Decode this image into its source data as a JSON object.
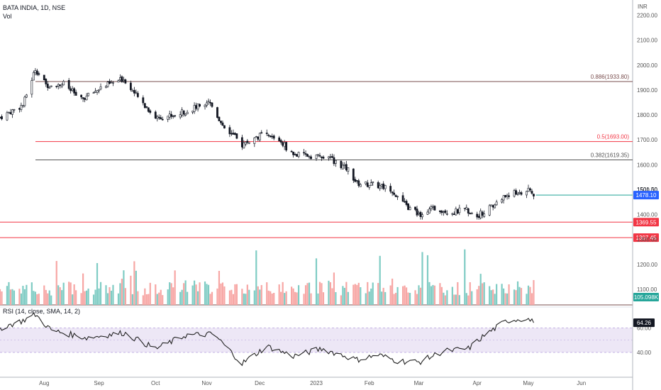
{
  "header": {
    "symbol_title": "BATA INDIA, 1D, NSE",
    "volume_label": "Vol",
    "currency": "INR"
  },
  "rsi_panel": {
    "label": "RSI (14, close, SMA, 14, 2)",
    "current_value": "64.26",
    "band_upper": 60,
    "band_lower": 40,
    "midline": 50
  },
  "price_axis": {
    "tick_labels": [
      "2200.00",
      "2100.00",
      "2000.00",
      "1900.00",
      "1800.00",
      "1700.00",
      "1600.00",
      "1500.00",
      "1400.00",
      "1300.00",
      "1200.00",
      "1100.00"
    ],
    "last_price_label": "1478.10",
    "marker_label": "1501.50",
    "volume_label": "105.098K"
  },
  "rsi_axis": {
    "tick_labels": [
      "60.00",
      "40.00"
    ]
  },
  "time_axis": {
    "labels": [
      "Aug",
      "Sep",
      "Oct",
      "Nov",
      "Dec",
      "2023",
      "Feb",
      "Mar",
      "Apr",
      "May",
      "Jun"
    ]
  },
  "levels": [
    {
      "label": "0.886(1933.80)",
      "value": 1933.8,
      "color": "#7a4f4f"
    },
    {
      "label": "0.5(1693.00)",
      "value": 1693.0,
      "color": "#f23645"
    },
    {
      "label": "0.382(1619.35)",
      "value": 1619.35,
      "color": "#555555"
    },
    {
      "label": "1369.55",
      "value": 1369.55,
      "color": "#f23645"
    },
    {
      "label": "1307.45",
      "value": 1307.45,
      "color": "#f23645"
    }
  ],
  "colors": {
    "up": "#26a69a",
    "down": "#ef5350",
    "vol_up": "#7fccc4",
    "vol_down": "#f7a6a4",
    "rsi_line": "#222222",
    "rsi_band": "#ede7f6",
    "last_price": "#2962ff",
    "last_line": "#4db6ac"
  },
  "chart_data": {
    "type": "candlestick",
    "title": "BATA INDIA, 1D, NSE",
    "x_range": [
      "2022-07-07",
      "2023-06-30"
    ],
    "ylim": [
      1330,
      2230
    ],
    "close_anchors": [
      {
        "x": "2022-07-07",
        "y": 1790
      },
      {
        "x": "2022-07-20",
        "y": 1840
      },
      {
        "x": "2022-07-27",
        "y": 1985
      },
      {
        "x": "2022-08-02",
        "y": 1920
      },
      {
        "x": "2022-08-12",
        "y": 1925
      },
      {
        "x": "2022-08-22",
        "y": 1860
      },
      {
        "x": "2022-09-02",
        "y": 1910
      },
      {
        "x": "2022-09-15",
        "y": 1945
      },
      {
        "x": "2022-09-23",
        "y": 1870
      },
      {
        "x": "2022-10-03",
        "y": 1790
      },
      {
        "x": "2022-10-14",
        "y": 1800
      },
      {
        "x": "2022-10-26",
        "y": 1830
      },
      {
        "x": "2022-11-02",
        "y": 1860
      },
      {
        "x": "2022-11-10",
        "y": 1760
      },
      {
        "x": "2022-11-21",
        "y": 1680
      },
      {
        "x": "2022-12-02",
        "y": 1720
      },
      {
        "x": "2022-12-12",
        "y": 1700
      },
      {
        "x": "2022-12-20",
        "y": 1640
      },
      {
        "x": "2023-01-02",
        "y": 1635
      },
      {
        "x": "2023-01-11",
        "y": 1620
      },
      {
        "x": "2023-01-20",
        "y": 1580
      },
      {
        "x": "2023-01-25",
        "y": 1525
      },
      {
        "x": "2023-02-03",
        "y": 1520
      },
      {
        "x": "2023-02-13",
        "y": 1505
      },
      {
        "x": "2023-02-21",
        "y": 1440
      },
      {
        "x": "2023-03-01",
        "y": 1400
      },
      {
        "x": "2023-03-10",
        "y": 1425
      },
      {
        "x": "2023-03-20",
        "y": 1410
      },
      {
        "x": "2023-03-28",
        "y": 1420
      },
      {
        "x": "2023-04-03",
        "y": 1395
      },
      {
        "x": "2023-04-11",
        "y": 1430
      },
      {
        "x": "2023-04-20",
        "y": 1480
      },
      {
        "x": "2023-05-02",
        "y": 1495
      },
      {
        "x": "2023-05-05",
        "y": 1478.1
      }
    ],
    "rsi_anchors": [
      {
        "x": "2022-07-07",
        "y": 60
      },
      {
        "x": "2022-07-20",
        "y": 66
      },
      {
        "x": "2022-07-27",
        "y": 71
      },
      {
        "x": "2022-08-05",
        "y": 58
      },
      {
        "x": "2022-08-25",
        "y": 52
      },
      {
        "x": "2022-09-15",
        "y": 56
      },
      {
        "x": "2022-10-03",
        "y": 43
      },
      {
        "x": "2022-10-20",
        "y": 54
      },
      {
        "x": "2022-11-05",
        "y": 55
      },
      {
        "x": "2022-11-21",
        "y": 31
      },
      {
        "x": "2022-12-05",
        "y": 45
      },
      {
        "x": "2022-12-20",
        "y": 37
      },
      {
        "x": "2023-01-05",
        "y": 43
      },
      {
        "x": "2023-01-25",
        "y": 34
      },
      {
        "x": "2023-02-06",
        "y": 38
      },
      {
        "x": "2023-02-17",
        "y": 33
      },
      {
        "x": "2023-03-01",
        "y": 32
      },
      {
        "x": "2023-03-15",
        "y": 41
      },
      {
        "x": "2023-03-29",
        "y": 43
      },
      {
        "x": "2023-04-08",
        "y": 55
      },
      {
        "x": "2023-04-20",
        "y": 66
      },
      {
        "x": "2023-05-01",
        "y": 68
      },
      {
        "x": "2023-05-05",
        "y": 64.26
      }
    ],
    "volume_scale_max": 360000,
    "volume_last": 105098
  }
}
